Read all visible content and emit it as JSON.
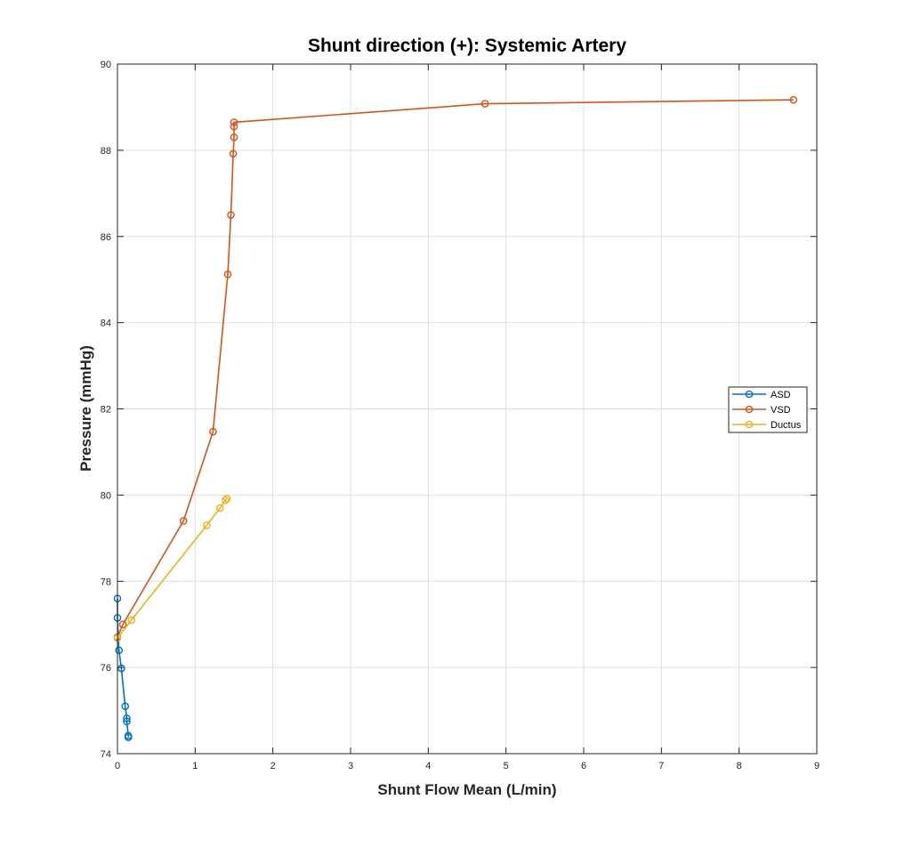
{
  "chart_data": {
    "type": "line",
    "title": "Shunt direction (+): Systemic Artery",
    "xlabel": "Shunt Flow Mean (L/min)",
    "ylabel": "Pressure (mmHg)",
    "xlim": [
      0,
      9
    ],
    "ylim": [
      74,
      90
    ],
    "xticks": [
      "0",
      "1",
      "2",
      "3",
      "4",
      "5",
      "6",
      "7",
      "8",
      "9"
    ],
    "yticks": [
      "74",
      "76",
      "78",
      "80",
      "82",
      "84",
      "86",
      "88",
      "90"
    ],
    "grid": true,
    "box": true,
    "marker": "circle",
    "legend_position": "east",
    "series": [
      {
        "name": "ASD",
        "color": "#0072BD",
        "points": [
          [
            0.0,
            77.6
          ],
          [
            0.0,
            77.15
          ],
          [
            0.02,
            76.4
          ],
          [
            0.05,
            75.98
          ],
          [
            0.1,
            75.1
          ],
          [
            0.12,
            74.82
          ],
          [
            0.12,
            74.75
          ],
          [
            0.14,
            74.42
          ],
          [
            0.14,
            74.38
          ]
        ]
      },
      {
        "name": "VSD",
        "color": "#D95319",
        "points": [
          [
            0.0,
            76.7
          ],
          [
            0.07,
            77.0
          ],
          [
            0.85,
            79.4
          ],
          [
            1.23,
            81.47
          ],
          [
            1.42,
            85.12
          ],
          [
            1.46,
            86.5
          ],
          [
            1.49,
            87.92
          ],
          [
            1.5,
            88.3
          ],
          [
            1.5,
            88.55
          ],
          [
            1.5,
            88.65
          ],
          [
            4.73,
            89.08
          ],
          [
            8.7,
            89.17
          ]
        ]
      },
      {
        "name": "Ductus",
        "color": "#EDB120",
        "points": [
          [
            0.0,
            76.68
          ],
          [
            0.18,
            77.1
          ],
          [
            1.15,
            79.3
          ],
          [
            1.32,
            79.7
          ],
          [
            1.39,
            79.88
          ],
          [
            1.41,
            79.92
          ]
        ]
      }
    ]
  }
}
